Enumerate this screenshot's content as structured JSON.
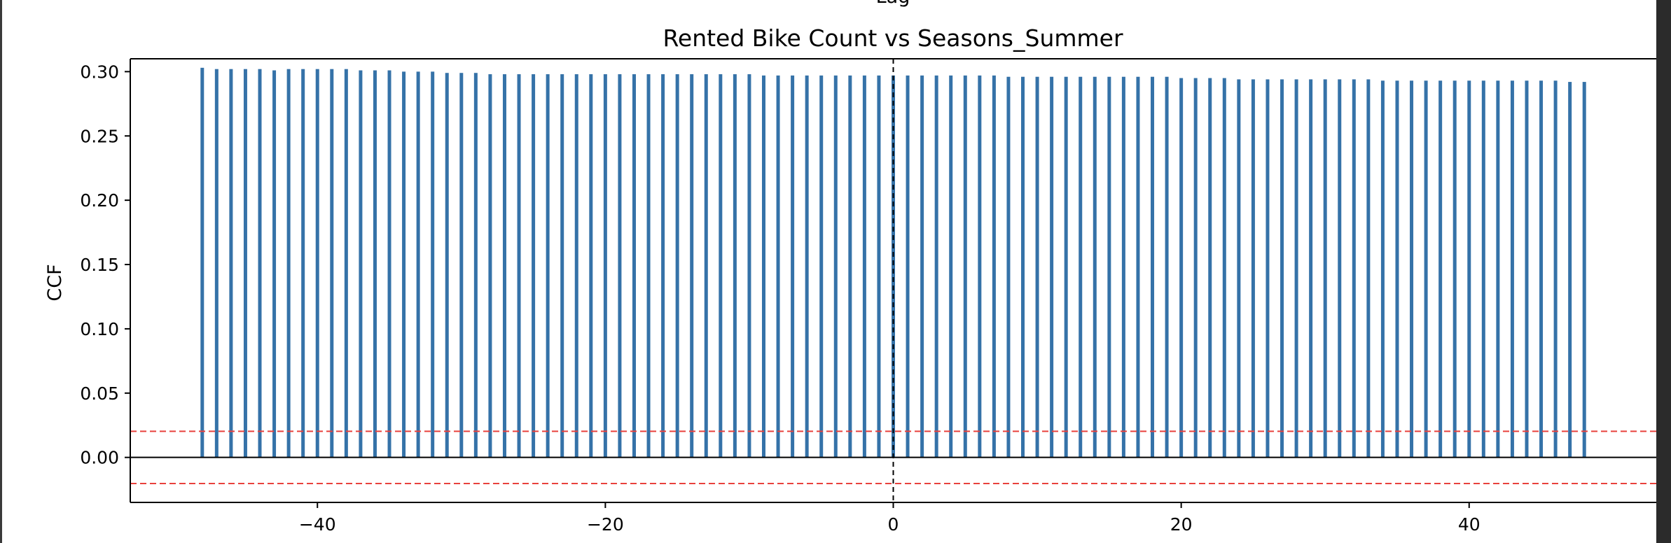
{
  "chart_data": {
    "type": "bar",
    "title": "Rented Bike Count vs Seasons_Summer",
    "xlabel": "Lag",
    "ylabel": "CCF",
    "xlim": [
      -53,
      53
    ],
    "ylim": [
      -0.035,
      0.31
    ],
    "x_ticks": [
      -40,
      -20,
      0,
      20,
      40
    ],
    "x_tick_labels": [
      "−40",
      "−20",
      "0",
      "20",
      "40"
    ],
    "y_ticks": [
      0.0,
      0.05,
      0.1,
      0.15,
      0.2,
      0.25,
      0.3
    ],
    "y_tick_labels": [
      "0.00",
      "0.05",
      "0.10",
      "0.15",
      "0.20",
      "0.25",
      "0.30"
    ],
    "confidence_band": [
      0.0203,
      -0.0203
    ],
    "grid": false,
    "colors": {
      "bars": "#3572a8",
      "confidence": "#e8413c",
      "zero_line": "#000000",
      "vline": "#000000"
    },
    "x": [
      -48,
      -47,
      -46,
      -45,
      -44,
      -43,
      -42,
      -41,
      -40,
      -39,
      -38,
      -37,
      -36,
      -35,
      -34,
      -33,
      -32,
      -31,
      -30,
      -29,
      -28,
      -27,
      -26,
      -25,
      -24,
      -23,
      -22,
      -21,
      -20,
      -19,
      -18,
      -17,
      -16,
      -15,
      -14,
      -13,
      -12,
      -11,
      -10,
      -9,
      -8,
      -7,
      -6,
      -5,
      -4,
      -3,
      -2,
      -1,
      0,
      1,
      2,
      3,
      4,
      5,
      6,
      7,
      8,
      9,
      10,
      11,
      12,
      13,
      14,
      15,
      16,
      17,
      18,
      19,
      20,
      21,
      22,
      23,
      24,
      25,
      26,
      27,
      28,
      29,
      30,
      31,
      32,
      33,
      34,
      35,
      36,
      37,
      38,
      39,
      40,
      41,
      42,
      43,
      44,
      45,
      46,
      47,
      48
    ],
    "values": [
      0.303,
      0.302,
      0.302,
      0.302,
      0.302,
      0.301,
      0.302,
      0.302,
      0.302,
      0.302,
      0.302,
      0.301,
      0.301,
      0.301,
      0.3,
      0.3,
      0.3,
      0.299,
      0.299,
      0.299,
      0.298,
      0.298,
      0.298,
      0.298,
      0.298,
      0.298,
      0.298,
      0.298,
      0.298,
      0.298,
      0.298,
      0.298,
      0.298,
      0.298,
      0.298,
      0.298,
      0.298,
      0.298,
      0.298,
      0.297,
      0.297,
      0.297,
      0.297,
      0.297,
      0.297,
      0.297,
      0.297,
      0.297,
      0.297,
      0.297,
      0.297,
      0.297,
      0.297,
      0.297,
      0.297,
      0.297,
      0.296,
      0.296,
      0.296,
      0.296,
      0.296,
      0.296,
      0.296,
      0.296,
      0.296,
      0.296,
      0.296,
      0.296,
      0.295,
      0.295,
      0.295,
      0.295,
      0.294,
      0.294,
      0.294,
      0.294,
      0.294,
      0.294,
      0.294,
      0.294,
      0.294,
      0.294,
      0.293,
      0.293,
      0.293,
      0.293,
      0.293,
      0.293,
      0.293,
      0.293,
      0.293,
      0.293,
      0.293,
      0.293,
      0.293,
      0.292,
      0.292
    ]
  }
}
